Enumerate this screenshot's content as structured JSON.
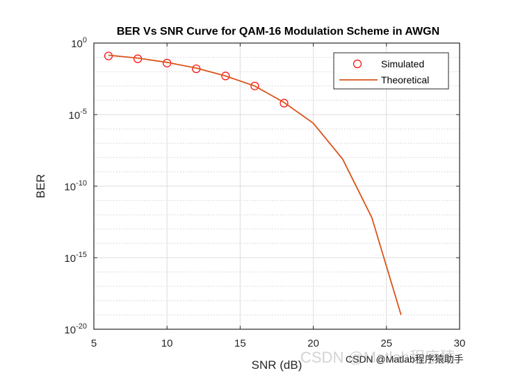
{
  "chart_data": {
    "type": "line",
    "title": "BER Vs SNR Curve for QAM-16 Modulation Scheme in AWGN",
    "xlabel": "SNR (dB)",
    "ylabel": "BER",
    "xlim": [
      5,
      30
    ],
    "ylim_log10": [
      -20,
      0
    ],
    "yscale": "log",
    "grid": true,
    "minor_grid": true,
    "legend_position": "top-right",
    "x_ticks": [
      "5",
      "10",
      "15",
      "20",
      "25",
      "30"
    ],
    "y_ticks": [
      {
        "base": "10",
        "exp": "0"
      },
      {
        "base": "10",
        "exp": "-5"
      },
      {
        "base": "10",
        "exp": "-10"
      },
      {
        "base": "10",
        "exp": "-15"
      },
      {
        "base": "10",
        "exp": "-20"
      }
    ],
    "series": [
      {
        "name": "Simulated",
        "style": "markers",
        "marker": "circle",
        "color": "#ff0000",
        "x": [
          6,
          8,
          10,
          12,
          14,
          16,
          18
        ],
        "y_log10": [
          -0.9,
          -1.1,
          -1.4,
          -1.8,
          -2.3,
          -3.0,
          -4.2
        ]
      },
      {
        "name": "Theoretical",
        "style": "line",
        "color": "#d95319",
        "x": [
          6,
          8,
          10,
          12,
          14,
          16,
          18,
          20,
          22,
          24,
          26
        ],
        "y_log10": [
          -0.85,
          -1.05,
          -1.35,
          -1.75,
          -2.3,
          -3.0,
          -4.15,
          -5.6,
          -8.1,
          -12.2,
          -19.0
        ]
      }
    ]
  },
  "watermark": {
    "large": "CSDN @Matlab程序猿",
    "small": "CSDN @Matlab程序猿助手"
  }
}
